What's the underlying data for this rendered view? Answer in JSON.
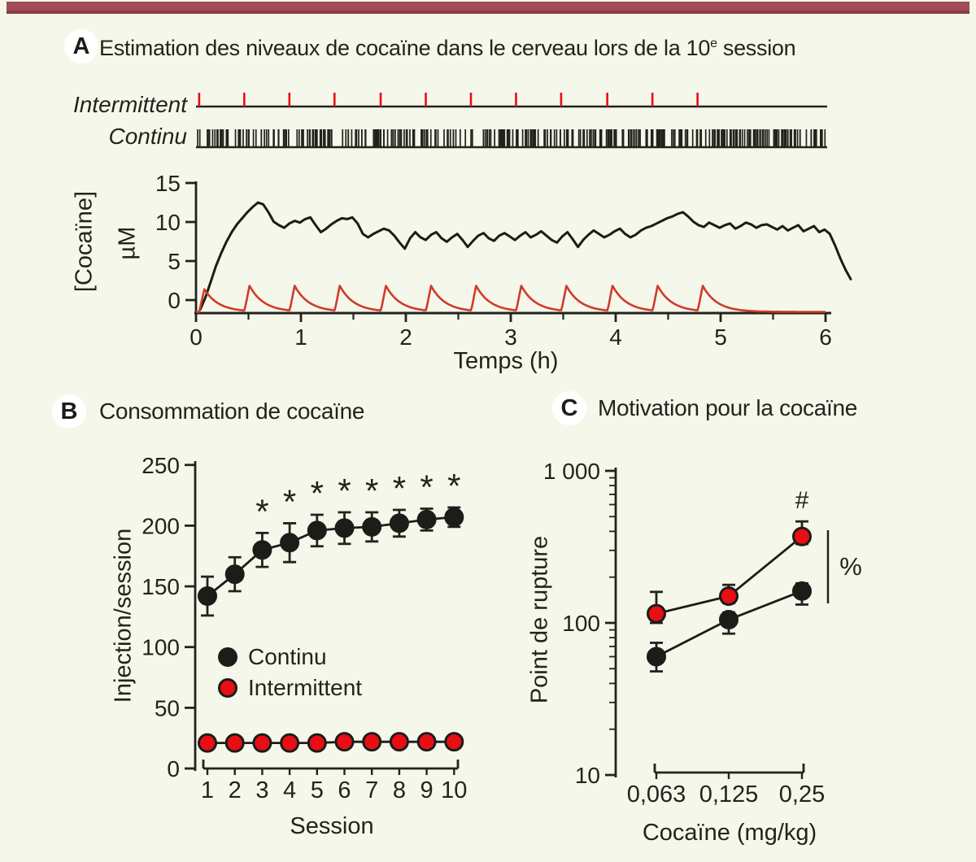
{
  "theme": {
    "background": "#f5f7ea",
    "topbar_color": "#a04b55",
    "topbar_edge": "#8d3b46",
    "ink": "#23231d",
    "curve_black": "#1c1c18",
    "red": "#d13a2c",
    "dot_red": "#e80e14",
    "badge_bg": "#ffffff"
  },
  "chart_data": [
    {
      "panel_label": "A",
      "type": "line",
      "title_parts": [
        "Estimation des niveaux de cocaïne dans le cerveau lors de la 10",
        "e",
        " session"
      ],
      "xlabel": "Temps (h)",
      "ylabel": "[Cocaïne]",
      "ylabel_units": "µM",
      "xlim": [
        0,
        6.3
      ],
      "ylim": [
        0,
        15
      ],
      "xticks": [
        0,
        1,
        2,
        3,
        4,
        5,
        6
      ],
      "xminor_step": 0.5,
      "yticks": [
        0,
        5,
        10,
        15
      ],
      "raster": {
        "labels": [
          "Intermittent",
          "Continu"
        ],
        "continuous_tick_count": 340,
        "seed": 9
      },
      "series": [
        {
          "name": "Continu",
          "style": "noisy-line",
          "color_key": "curve_black",
          "t0": 0.04,
          "dt": 0.05,
          "values": [
            0.4,
            1.8,
            3.6,
            5.4,
            6.9,
            8.2,
            9.3,
            10.2,
            10.9,
            11.6,
            12.2,
            12.7,
            12.5,
            11.6,
            10.5,
            10.1,
            9.8,
            10.3,
            10.6,
            10.4,
            10.8,
            11.0,
            10.1,
            9.3,
            9.7,
            10.2,
            10.6,
            10.9,
            10.8,
            11.0,
            10.3,
            9.1,
            8.7,
            9.1,
            9.4,
            9.7,
            9.5,
            8.9,
            8.1,
            7.4,
            8.6,
            9.3,
            8.7,
            8.4,
            9.0,
            9.3,
            8.6,
            8.2,
            8.7,
            9.1,
            8.4,
            7.6,
            8.3,
            8.9,
            9.2,
            8.6,
            8.3,
            8.9,
            9.2,
            8.8,
            8.4,
            8.9,
            9.3,
            8.7,
            9.0,
            9.4,
            8.9,
            8.4,
            8.1,
            8.8,
            9.3,
            8.5,
            7.6,
            8.4,
            9.0,
            9.5,
            9.1,
            8.7,
            9.0,
            9.4,
            9.7,
            9.1,
            8.7,
            9.0,
            9.5,
            9.8,
            10.0,
            10.3,
            10.6,
            10.9,
            11.1,
            11.4,
            11.6,
            11.1,
            10.5,
            10.1,
            9.9,
            10.4,
            10.1,
            9.8,
            10.1,
            10.3,
            9.7,
            10.0,
            10.4,
            10.2,
            9.8,
            10.1,
            10.2,
            9.9,
            9.6,
            10.0,
            9.5,
            9.8,
            10.1,
            9.4,
            9.7,
            10.0,
            9.3,
            9.6,
            9.1,
            7.8,
            6.3,
            5.0,
            3.9
          ]
        },
        {
          "name": "Intermittent",
          "style": "spikes",
          "color_key": "red",
          "spike_times_h": [
            0.03,
            0.46,
            0.89,
            1.32,
            1.76,
            2.19,
            2.62,
            3.05,
            3.48,
            3.92,
            4.35,
            4.78
          ],
          "spike_peaks_uM": [
            2.6,
            3,
            3,
            3,
            3,
            3,
            3,
            3,
            3,
            3,
            3,
            3
          ],
          "rise_h": 0.05,
          "decay_tau_h": 0.135
        }
      ]
    },
    {
      "panel_label": "B",
      "type": "scatter",
      "title": "Consommation de cocaïne",
      "xlabel": "Session",
      "ylabel": "Injection/session",
      "categories": [
        "1",
        "2",
        "3",
        "4",
        "5",
        "6",
        "7",
        "8",
        "9",
        "10"
      ],
      "ylim": [
        0,
        250
      ],
      "yticks": [
        0,
        50,
        100,
        150,
        200,
        250
      ],
      "series": [
        {
          "name": "Continu",
          "color_key": "curve_black",
          "values": [
            142,
            160,
            180,
            186,
            196,
            198,
            199,
            202,
            205,
            207
          ],
          "errors": [
            16,
            14,
            14,
            16,
            13,
            13,
            12,
            11,
            9,
            8
          ],
          "significant": [
            0,
            0,
            1,
            1,
            1,
            1,
            1,
            1,
            1,
            1
          ],
          "sig_symbol": "*"
        },
        {
          "name": "Intermittent",
          "color_key": "dot_red",
          "values": [
            21,
            21,
            21,
            21,
            21,
            22,
            22,
            22,
            22,
            22
          ],
          "errors": [
            0,
            0,
            0,
            0,
            0,
            0,
            0,
            0,
            0,
            0
          ]
        }
      ]
    },
    {
      "panel_label": "C",
      "type": "scatter",
      "title": "Motivation pour la cocaïne",
      "xlabel": "Cocaïne (mg/kg)",
      "ylabel": "Point de rupture",
      "categories": [
        "0,063",
        "0,125",
        "0,25"
      ],
      "yscale": "log",
      "ylim": [
        10,
        1000
      ],
      "yticks": [
        10,
        100,
        1000
      ],
      "ytick_labels": [
        "10",
        "100",
        "1 000"
      ],
      "series": [
        {
          "name": "Intermittent",
          "color_key": "dot_red",
          "values": [
            115,
            150,
            370
          ],
          "err_up": [
            45,
            28,
            95
          ],
          "err_down": [
            15,
            15,
            40
          ],
          "significant": [
            0,
            0,
            1
          ],
          "sig_symbol": "#"
        },
        {
          "name": "Continu",
          "color_key": "curve_black",
          "values": [
            60,
            105,
            162
          ],
          "err_up": [
            14,
            12,
            20
          ],
          "err_down": [
            12,
            20,
            30
          ]
        }
      ],
      "group_difference_label": "%"
    }
  ]
}
